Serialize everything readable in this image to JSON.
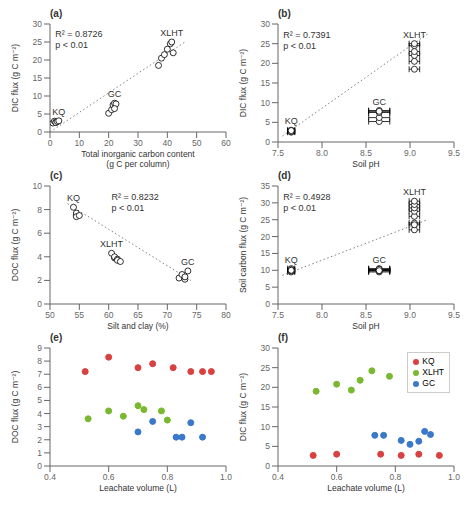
{
  "chart_data": [
    {
      "type": "scatter",
      "title": "(a)",
      "xlabel": "Total inorganic carbon content\n(g C per column)",
      "ylabel": "DIC flux (g C m⁻²)",
      "xlim": [
        0,
        60
      ],
      "ylim": [
        0,
        30
      ],
      "xticks": [
        0,
        10,
        20,
        30,
        40,
        50,
        60
      ],
      "yticks": [
        0,
        5,
        10,
        15,
        20,
        25,
        30
      ],
      "series": [
        {
          "name": "KQ",
          "color": "black",
          "marker": "open",
          "x": [
            1,
            1.5,
            2,
            2,
            2.5,
            3
          ],
          "values": [
            2.5,
            3.0,
            2.8,
            2.6,
            2.9,
            3.1
          ]
        },
        {
          "name": "GC",
          "color": "black",
          "marker": "open",
          "x": [
            20,
            21,
            21.5,
            22,
            22.5,
            22
          ],
          "values": [
            5.2,
            6.2,
            7.5,
            8.0,
            7.8,
            6.5
          ]
        },
        {
          "name": "XLHT",
          "color": "black",
          "marker": "open",
          "x": [
            37,
            38,
            39,
            40,
            41,
            41.5,
            42
          ],
          "values": [
            18.5,
            20.5,
            21.5,
            23.0,
            24.5,
            25.0,
            22.0
          ]
        },
        {
          "type": "line",
          "line_style": "dotted",
          "color": "gray",
          "x": [
            0,
            46
          ],
          "values": [
            0,
            25
          ]
        }
      ],
      "annotations": [
        "R² = 0.8726",
        "p < 0.01"
      ]
    },
    {
      "type": "scatter",
      "title": "(b)",
      "xlabel": "Soil pH",
      "ylabel": "DIC flux (g C m⁻²)",
      "xlim": [
        7.5,
        9.5
      ],
      "ylim": [
        0,
        30
      ],
      "xticks": [
        7.5,
        {
          "value": 8.0,
          "label": "8.0"
        },
        8.5,
        {
          "value": 9.0,
          "label": "9.0"
        },
        9.5
      ],
      "yticks": [
        0,
        5,
        10,
        15,
        20,
        25,
        30
      ],
      "series": [
        {
          "name": "KQ",
          "color": "black",
          "marker": "open",
          "x": [
            7.65,
            7.65,
            7.65,
            7.65,
            7.65
          ],
          "values": [
            2.5,
            3.0,
            2.8,
            2.6,
            2.9
          ],
          "xerr": 0.04
        },
        {
          "name": "GC",
          "color": "black",
          "marker": "open",
          "x": [
            8.65,
            8.65,
            8.65,
            8.65,
            8.65
          ],
          "values": [
            5.2,
            6.2,
            7.5,
            8.0,
            7.8
          ],
          "xerr": 0.12
        },
        {
          "name": "XLHT",
          "color": "black",
          "marker": "open",
          "x": [
            9.05,
            9.05,
            9.05,
            9.05,
            9.05,
            9.05
          ],
          "values": [
            18.5,
            20.5,
            22.0,
            23.0,
            24.5,
            25.0
          ],
          "xerr": 0.06
        },
        {
          "type": "line",
          "line_style": "dotted",
          "color": "gray",
          "x": [
            7.55,
            9.2
          ],
          "values": [
            1.5,
            27.5
          ]
        }
      ],
      "annotations": [
        "R² = 0.7391",
        "p < 0.01"
      ]
    },
    {
      "type": "scatter",
      "title": "(c)",
      "xlabel": "Silt and clay (%)",
      "ylabel": "DOC flux (g C m⁻²)",
      "xlim": [
        50,
        80
      ],
      "ylim": [
        0,
        10
      ],
      "xticks": [
        50,
        55,
        60,
        65,
        70,
        75,
        80
      ],
      "yticks": [
        0,
        2,
        4,
        6,
        8,
        10
      ],
      "series": [
        {
          "name": "KQ",
          "color": "black",
          "marker": "open",
          "x": [
            54,
            54.5,
            54.5,
            54.5,
            54.5,
            55
          ],
          "values": [
            8.2,
            7.5,
            7.6,
            7.7,
            7.4,
            7.5
          ]
        },
        {
          "name": "XLHT",
          "color": "black",
          "marker": "open",
          "x": [
            60.5,
            61,
            61,
            61.5,
            61.5,
            62
          ],
          "values": [
            4.3,
            3.9,
            4.0,
            3.8,
            3.7,
            3.6
          ]
        },
        {
          "name": "GC",
          "color": "black",
          "marker": "open",
          "x": [
            72,
            72.5,
            73,
            73,
            73.5
          ],
          "values": [
            2.2,
            2.5,
            2.1,
            2.3,
            2.8
          ]
        },
        {
          "type": "line",
          "line_style": "dotted",
          "color": "gray",
          "x": [
            53,
            74
          ],
          "values": [
            8.5,
            2.0
          ]
        }
      ],
      "annotations": [
        "R² = 0.8232",
        "p < 0.01"
      ]
    },
    {
      "type": "scatter",
      "title": "(d)",
      "xlabel": "Soil pH",
      "ylabel": "Soil carbon flux (g C m⁻²)",
      "xlim": [
        7.5,
        9.5
      ],
      "ylim": [
        0,
        35
      ],
      "xticks": [
        7.5,
        {
          "value": 8.0,
          "label": "8.0"
        },
        8.5,
        {
          "value": 9.0,
          "label": "9.0"
        },
        9.5
      ],
      "yticks": [
        0,
        5,
        10,
        15,
        20,
        25,
        30,
        35
      ],
      "series": [
        {
          "name": "KQ",
          "color": "black",
          "marker": "open",
          "x": [
            7.65,
            7.65,
            7.65,
            7.65,
            7.65
          ],
          "values": [
            9.5,
            10.5,
            10.2,
            9.8,
            10.0
          ],
          "xerr": 0.04
        },
        {
          "name": "GC",
          "color": "black",
          "marker": "open",
          "x": [
            8.65,
            8.65,
            8.65,
            8.65,
            8.65,
            8.65,
            8.65
          ],
          "values": [
            9.5,
            10.0,
            10.5,
            10.2,
            9.8,
            10.3,
            9.9
          ],
          "xerr": 0.12
        },
        {
          "name": "XLHT",
          "color": "black",
          "marker": "open",
          "x": [
            9.05,
            9.05,
            9.05,
            9.05,
            9.05,
            9.05,
            9.05,
            9.05
          ],
          "values": [
            22.0,
            24.0,
            26.0,
            27.5,
            28.5,
            29.5,
            30.5,
            23.5
          ],
          "xerr": 0.06
        },
        {
          "type": "line",
          "line_style": "dotted",
          "color": "gray",
          "x": [
            7.55,
            9.2
          ],
          "values": [
            8.5,
            25.0
          ]
        }
      ],
      "annotations": [
        "R² = 0.4928",
        "p < 0.01"
      ]
    },
    {
      "type": "scatter",
      "title": "(e)",
      "xlabel": "Leachate volume (L)",
      "ylabel": "DOC flux (g C m⁻²)",
      "xlim": [
        0.4,
        1.0
      ],
      "ylim": [
        0,
        9
      ],
      "xticks": [
        0.4,
        0.6,
        0.8,
        {
          "value": 1.0,
          "label": "1.0"
        }
      ],
      "yticks": [
        0,
        1,
        2,
        3,
        4,
        5,
        6,
        7,
        8,
        9
      ],
      "series": [
        {
          "color": "#d94040",
          "x": [
            0.52,
            0.6,
            0.7,
            0.75,
            0.82,
            0.88,
            0.92,
            0.95
          ],
          "values": [
            7.2,
            8.3,
            7.5,
            7.8,
            7.5,
            7.2,
            7.2,
            7.2
          ]
        },
        {
          "color": "#7ab830",
          "x": [
            0.53,
            0.6,
            0.65,
            0.7,
            0.72,
            0.78,
            0.8
          ],
          "values": [
            3.6,
            4.2,
            3.8,
            4.6,
            4.3,
            4.2,
            3.5
          ]
        },
        {
          "color": "#3a78c9",
          "x": [
            0.7,
            0.75,
            0.83,
            0.85,
            0.88,
            0.92
          ],
          "values": [
            2.6,
            3.4,
            2.2,
            2.2,
            3.3,
            2.2
          ]
        }
      ]
    },
    {
      "type": "scatter",
      "title": "(f)",
      "xlabel": "Leachate volume (L)",
      "ylabel": "DIC flux (g C m⁻²)",
      "xlim": [
        0.4,
        1.0
      ],
      "ylim": [
        0,
        30
      ],
      "xticks": [
        0.4,
        0.6,
        0.8,
        {
          "value": 1.0,
          "label": "1.0"
        }
      ],
      "yticks": [
        0,
        5,
        10,
        15,
        20,
        25,
        30
      ],
      "legend": "upper right",
      "series": [
        {
          "name": "KQ",
          "color": "#d94040",
          "x": [
            0.52,
            0.6,
            0.75,
            0.82,
            0.88,
            0.95
          ],
          "values": [
            2.7,
            3.0,
            3.0,
            2.7,
            3.0,
            2.7
          ]
        },
        {
          "name": "XLHT",
          "color": "#7ab830",
          "x": [
            0.53,
            0.6,
            0.65,
            0.68,
            0.72,
            0.78
          ],
          "values": [
            19.0,
            20.8,
            19.3,
            21.8,
            24.2,
            22.8
          ]
        },
        {
          "name": "GC",
          "color": "#3a78c9",
          "x": [
            0.73,
            0.76,
            0.82,
            0.85,
            0.88,
            0.9,
            0.92
          ],
          "values": [
            7.8,
            7.8,
            6.5,
            5.5,
            6.3,
            8.8,
            8.0
          ]
        }
      ]
    }
  ]
}
